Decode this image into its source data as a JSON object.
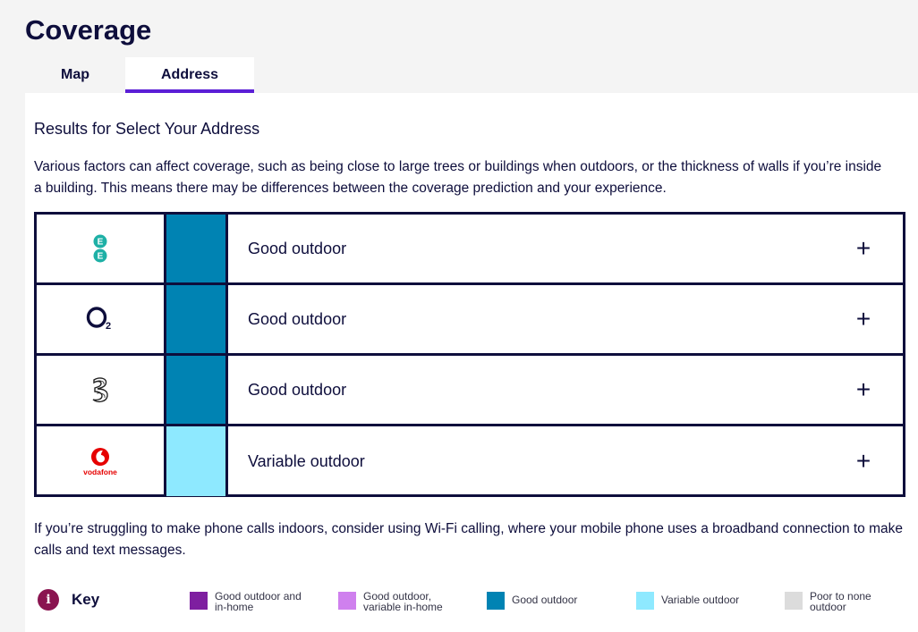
{
  "page": {
    "title": "Coverage"
  },
  "tabs": [
    {
      "label": "Map",
      "active": false
    },
    {
      "label": "Address",
      "active": true
    }
  ],
  "results": {
    "title": "Results for Select Your Address",
    "intro": "Various factors can affect coverage, such as being close to large trees or buildings when outdoors, or the thickness of walls if you’re inside a building. This means there may be differences between the coverage prediction and your experience."
  },
  "operators": [
    {
      "name": "EE",
      "logo_icon": "ee-logo-icon",
      "logo_text": "E E",
      "status": "Good outdoor",
      "color": "#0083b3"
    },
    {
      "name": "O2",
      "logo_icon": "o2-logo-icon",
      "logo_text": "O2",
      "status": "Good outdoor",
      "color": "#0083b3"
    },
    {
      "name": "Three",
      "logo_icon": "three-logo-icon",
      "logo_text": "3",
      "status": "Good outdoor",
      "color": "#0083b3"
    },
    {
      "name": "Vodafone",
      "logo_icon": "vodafone-logo-icon",
      "logo_text": "vodafone",
      "status": "Variable outdoor",
      "color": "#8ee9ff"
    }
  ],
  "expand_symbol": "+",
  "wifi_note": "If you’re struggling to make phone calls indoors, consider using Wi-Fi calling, where your mobile phone uses a broadband connection to make calls and text messages.",
  "key": {
    "icon": "info-icon",
    "icon_text": "i",
    "label": "Key",
    "items": [
      {
        "label": "Good outdoor and in-home",
        "color": "#7e1fa0"
      },
      {
        "label": "Good outdoor, variable in-home",
        "color": "#cf80ee"
      },
      {
        "label": "Good outdoor",
        "color": "#0083b3"
      },
      {
        "label": "Variable outdoor",
        "color": "#8ee9ff"
      },
      {
        "label": "Poor to none outdoor",
        "color": "#dcdcdc"
      }
    ]
  }
}
